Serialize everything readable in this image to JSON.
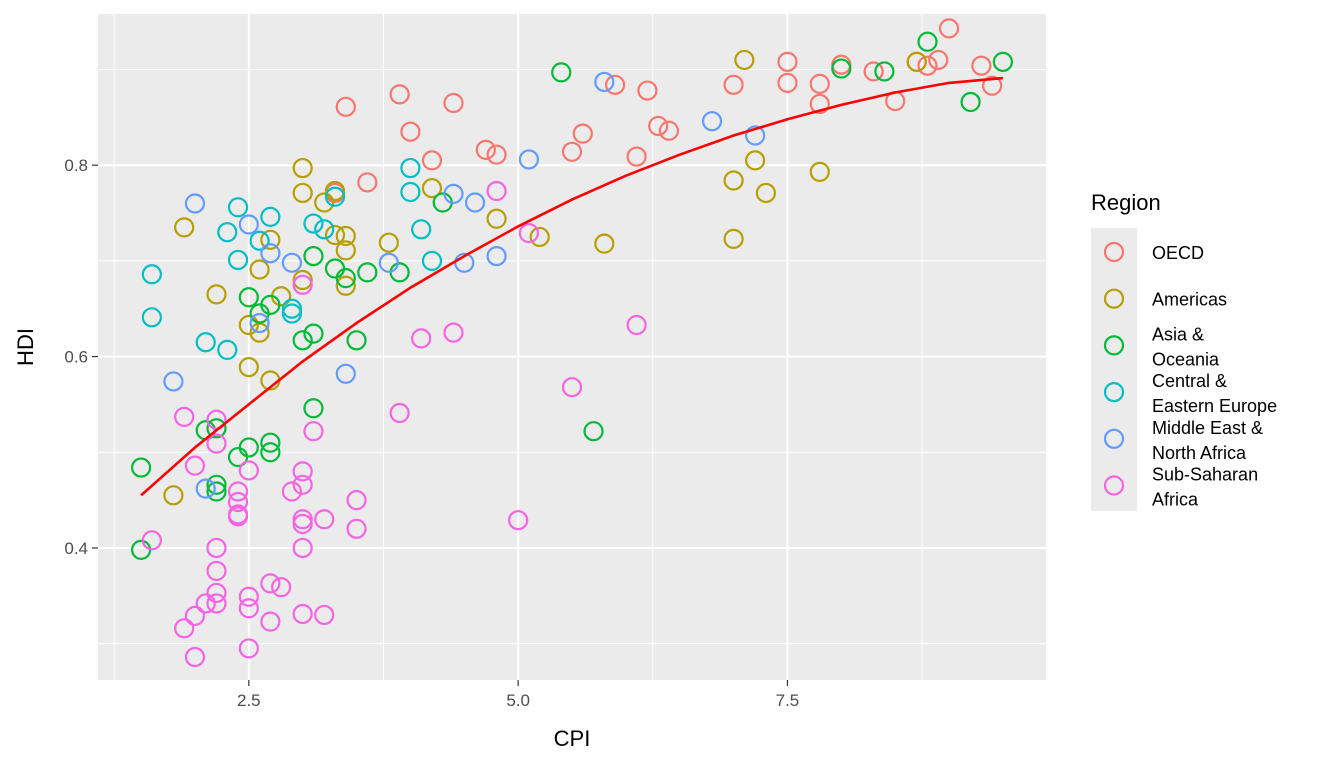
{
  "chart_data": {
    "type": "scatter",
    "xlabel": "CPI",
    "ylabel": "HDI",
    "xlim": [
      1.1,
      9.9
    ],
    "ylim": [
      0.262,
      0.958
    ],
    "x_ticks": [
      2.5,
      5.0,
      7.5
    ],
    "x_tick_labels": [
      "2.5",
      "5.0",
      "7.5"
    ],
    "y_ticks": [
      0.4,
      0.6,
      0.8
    ],
    "y_tick_labels": [
      "0.4",
      "0.6",
      "0.8"
    ],
    "grid": true,
    "legend": {
      "title": "Region",
      "position": "right",
      "entries": [
        {
          "lines": [
            "OECD"
          ],
          "color": "#F8766D"
        },
        {
          "lines": [
            "Americas"
          ],
          "color": "#B79F00"
        },
        {
          "lines": [
            "Asia &",
            "Oceania"
          ],
          "color": "#00BA38"
        },
        {
          "lines": [
            "Central &",
            "Eastern Europe"
          ],
          "color": "#00BFC4"
        },
        {
          "lines": [
            "Middle East &",
            "North Africa"
          ],
          "color": "#619CFF"
        },
        {
          "lines": [
            "Sub-Saharan",
            "Africa"
          ],
          "color": "#F564E3"
        }
      ]
    },
    "trend_line": {
      "color": "#FF0000",
      "points": [
        [
          1.5,
          0.455
        ],
        [
          2.0,
          0.505
        ],
        [
          2.5,
          0.55
        ],
        [
          3.0,
          0.595
        ],
        [
          3.5,
          0.635
        ],
        [
          4.0,
          0.672
        ],
        [
          4.5,
          0.705
        ],
        [
          5.0,
          0.736
        ],
        [
          5.5,
          0.764
        ],
        [
          6.0,
          0.789
        ],
        [
          6.5,
          0.811
        ],
        [
          7.0,
          0.831
        ],
        [
          7.5,
          0.848
        ],
        [
          8.0,
          0.863
        ],
        [
          8.5,
          0.876
        ],
        [
          9.0,
          0.886
        ],
        [
          9.5,
          0.891
        ]
      ]
    },
    "series": [
      {
        "name": "OECD",
        "color": "#F8766D",
        "points": [
          [
            3.3,
            0.771
          ],
          [
            3.4,
            0.861
          ],
          [
            3.6,
            0.782
          ],
          [
            3.9,
            0.874
          ],
          [
            4.0,
            0.835
          ],
          [
            4.2,
            0.805
          ],
          [
            4.4,
            0.865
          ],
          [
            4.7,
            0.816
          ],
          [
            4.8,
            0.811
          ],
          [
            5.5,
            0.814
          ],
          [
            5.6,
            0.833
          ],
          [
            5.9,
            0.884
          ],
          [
            6.1,
            0.809
          ],
          [
            6.2,
            0.878
          ],
          [
            6.3,
            0.841
          ],
          [
            6.4,
            0.836
          ],
          [
            7.0,
            0.884
          ],
          [
            7.5,
            0.908
          ],
          [
            7.5,
            0.886
          ],
          [
            7.8,
            0.864
          ],
          [
            7.8,
            0.885
          ],
          [
            8.0,
            0.905
          ],
          [
            8.3,
            0.898
          ],
          [
            8.5,
            0.867
          ],
          [
            8.7,
            0.908
          ],
          [
            8.8,
            0.904
          ],
          [
            8.9,
            0.91
          ],
          [
            9.0,
            0.943
          ],
          [
            9.3,
            0.904
          ],
          [
            9.4,
            0.883
          ]
        ]
      },
      {
        "name": "Americas",
        "color": "#B79F00",
        "points": [
          [
            1.9,
            0.735
          ],
          [
            1.8,
            0.455
          ],
          [
            2.2,
            0.665
          ],
          [
            2.5,
            0.633
          ],
          [
            2.5,
            0.589
          ],
          [
            2.6,
            0.625
          ],
          [
            2.6,
            0.691
          ],
          [
            2.7,
            0.575
          ],
          [
            2.7,
            0.722
          ],
          [
            2.8,
            0.663
          ],
          [
            3.0,
            0.797
          ],
          [
            3.0,
            0.771
          ],
          [
            3.0,
            0.68
          ],
          [
            3.2,
            0.761
          ],
          [
            3.3,
            0.727
          ],
          [
            3.3,
            0.773
          ],
          [
            3.4,
            0.726
          ],
          [
            3.4,
            0.711
          ],
          [
            3.4,
            0.674
          ],
          [
            3.8,
            0.719
          ],
          [
            4.2,
            0.776
          ],
          [
            4.8,
            0.744
          ],
          [
            5.2,
            0.725
          ],
          [
            5.8,
            0.718
          ],
          [
            7.0,
            0.784
          ],
          [
            7.0,
            0.723
          ],
          [
            7.1,
            0.91
          ],
          [
            7.2,
            0.805
          ],
          [
            7.3,
            0.771
          ],
          [
            7.8,
            0.793
          ],
          [
            8.7,
            0.908
          ]
        ]
      },
      {
        "name": "Asia & Oceania",
        "color": "#00BA38",
        "points": [
          [
            1.5,
            0.484
          ],
          [
            1.5,
            0.398
          ],
          [
            2.1,
            0.523
          ],
          [
            2.2,
            0.525
          ],
          [
            2.2,
            0.466
          ],
          [
            2.2,
            0.459
          ],
          [
            2.4,
            0.495
          ],
          [
            2.5,
            0.505
          ],
          [
            2.5,
            0.662
          ],
          [
            2.6,
            0.645
          ],
          [
            2.7,
            0.51
          ],
          [
            2.7,
            0.5
          ],
          [
            2.7,
            0.654
          ],
          [
            3.0,
            0.617
          ],
          [
            3.1,
            0.546
          ],
          [
            3.1,
            0.624
          ],
          [
            3.1,
            0.705
          ],
          [
            3.3,
            0.692
          ],
          [
            3.4,
            0.682
          ],
          [
            3.5,
            0.617
          ],
          [
            3.6,
            0.688
          ],
          [
            3.9,
            0.688
          ],
          [
            4.3,
            0.761
          ],
          [
            5.4,
            0.897
          ],
          [
            5.7,
            0.522
          ],
          [
            8.0,
            0.901
          ],
          [
            8.4,
            0.898
          ],
          [
            8.8,
            0.929
          ],
          [
            9.2,
            0.866
          ],
          [
            9.5,
            0.908
          ]
        ]
      },
      {
        "name": "Central & Eastern Europe",
        "color": "#00BFC4",
        "points": [
          [
            1.6,
            0.686
          ],
          [
            1.6,
            0.641
          ],
          [
            2.1,
            0.615
          ],
          [
            2.3,
            0.73
          ],
          [
            2.3,
            0.607
          ],
          [
            2.4,
            0.756
          ],
          [
            2.4,
            0.701
          ],
          [
            2.6,
            0.721
          ],
          [
            2.7,
            0.746
          ],
          [
            2.9,
            0.645
          ],
          [
            2.9,
            0.65
          ],
          [
            3.1,
            0.739
          ],
          [
            3.2,
            0.733
          ],
          [
            3.3,
            0.767
          ],
          [
            4.0,
            0.797
          ],
          [
            4.0,
            0.772
          ],
          [
            4.1,
            0.733
          ],
          [
            4.2,
            0.7
          ]
        ]
      },
      {
        "name": "Middle East & North Africa",
        "color": "#619CFF",
        "points": [
          [
            1.8,
            0.574
          ],
          [
            2.0,
            0.76
          ],
          [
            2.1,
            0.462
          ],
          [
            2.5,
            0.738
          ],
          [
            2.6,
            0.635
          ],
          [
            2.7,
            0.708
          ],
          [
            2.9,
            0.698
          ],
          [
            3.4,
            0.582
          ],
          [
            3.8,
            0.698
          ],
          [
            4.4,
            0.77
          ],
          [
            4.5,
            0.698
          ],
          [
            4.6,
            0.761
          ],
          [
            4.8,
            0.705
          ],
          [
            5.1,
            0.806
          ],
          [
            5.8,
            0.887
          ],
          [
            6.8,
            0.846
          ],
          [
            7.2,
            0.831
          ]
        ]
      },
      {
        "name": "Sub-Saharan Africa",
        "color": "#F564E3",
        "points": [
          [
            1.6,
            0.408
          ],
          [
            1.9,
            0.537
          ],
          [
            1.9,
            0.316
          ],
          [
            2.0,
            0.286
          ],
          [
            2.0,
            0.486
          ],
          [
            2.0,
            0.329
          ],
          [
            2.1,
            0.342
          ],
          [
            2.2,
            0.509
          ],
          [
            2.2,
            0.534
          ],
          [
            2.2,
            0.4
          ],
          [
            2.2,
            0.376
          ],
          [
            2.2,
            0.342
          ],
          [
            2.2,
            0.353
          ],
          [
            2.4,
            0.459
          ],
          [
            2.4,
            0.448
          ],
          [
            2.4,
            0.435
          ],
          [
            2.4,
            0.433
          ],
          [
            2.5,
            0.481
          ],
          [
            2.5,
            0.349
          ],
          [
            2.5,
            0.337
          ],
          [
            2.5,
            0.295
          ],
          [
            2.7,
            0.363
          ],
          [
            2.7,
            0.323
          ],
          [
            2.8,
            0.359
          ],
          [
            2.9,
            0.459
          ],
          [
            3.0,
            0.675
          ],
          [
            3.0,
            0.48
          ],
          [
            3.0,
            0.466
          ],
          [
            3.0,
            0.43
          ],
          [
            3.0,
            0.425
          ],
          [
            3.0,
            0.4
          ],
          [
            3.0,
            0.331
          ],
          [
            3.1,
            0.522
          ],
          [
            3.2,
            0.43
          ],
          [
            3.2,
            0.33
          ],
          [
            3.5,
            0.45
          ],
          [
            3.5,
            0.42
          ],
          [
            3.9,
            0.541
          ],
          [
            4.1,
            0.619
          ],
          [
            4.4,
            0.625
          ],
          [
            4.8,
            0.773
          ],
          [
            5.0,
            0.429
          ],
          [
            5.1,
            0.729
          ],
          [
            5.5,
            0.568
          ],
          [
            6.1,
            0.633
          ]
        ]
      }
    ]
  }
}
